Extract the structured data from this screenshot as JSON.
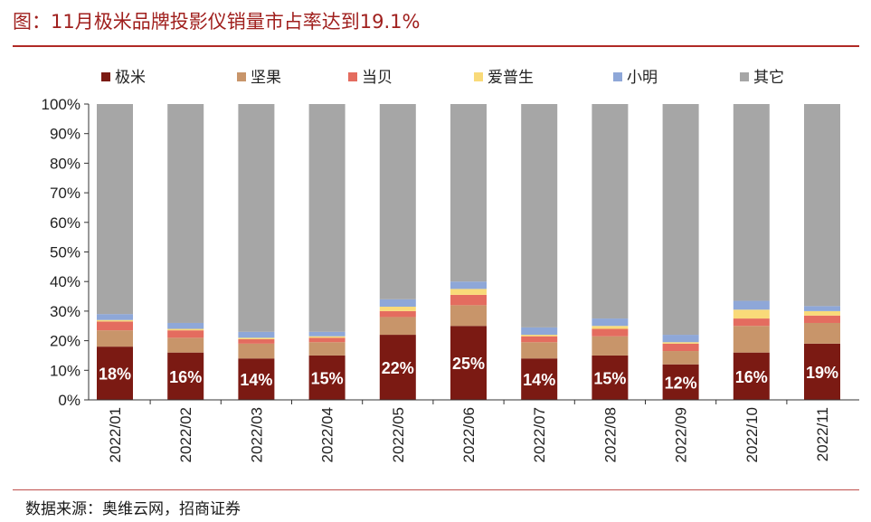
{
  "title": "图：11月极米品牌投影仪销量市占率达到19.1%",
  "source": "数据来源：奥维云网，招商证券",
  "chart_data": {
    "type": "bar",
    "stacked": true,
    "categories": [
      "2022/01",
      "2022/02",
      "2022/03",
      "2022/04",
      "2022/05",
      "2022/06",
      "2022/07",
      "2022/08",
      "2022/09",
      "2022/10",
      "2022/11"
    ],
    "y_ticks": [
      "0%",
      "10%",
      "20%",
      "30%",
      "40%",
      "50%",
      "60%",
      "70%",
      "80%",
      "90%",
      "100%"
    ],
    "ylim": [
      0,
      100
    ],
    "legend_position": "top",
    "series": [
      {
        "name": "极米",
        "color": "#7b1a13",
        "values": [
          18,
          16,
          14,
          15,
          22,
          25,
          14,
          15,
          12,
          16,
          19
        ]
      },
      {
        "name": "坚果",
        "color": "#c8956a",
        "values": [
          5.5,
          5,
          5,
          4.5,
          6,
          7,
          5.5,
          6.5,
          4.5,
          9,
          7
        ]
      },
      {
        "name": "当贝",
        "color": "#e46c5f",
        "values": [
          3,
          2.5,
          1.5,
          1.5,
          2,
          3.5,
          2,
          2.5,
          2.5,
          2.5,
          2.5
        ]
      },
      {
        "name": "爱普生",
        "color": "#f9da79",
        "values": [
          0.5,
          0.5,
          0.5,
          0.5,
          1.5,
          2,
          0.5,
          1,
          0.5,
          3,
          1.5
        ]
      },
      {
        "name": "小明",
        "color": "#8ea7d8",
        "values": [
          2,
          2,
          2,
          1.5,
          2.5,
          2.5,
          2.5,
          2.5,
          2.5,
          3,
          1.7
        ]
      },
      {
        "name": "其它",
        "color": "#a6a6a6",
        "values": [
          71,
          74,
          77,
          77,
          66,
          60,
          75.5,
          72.5,
          78,
          66.5,
          68.3
        ]
      }
    ],
    "data_labels": [
      "18%",
      "16%",
      "14%",
      "15%",
      "22%",
      "25%",
      "14%",
      "15%",
      "12%",
      "16%",
      "19%"
    ]
  }
}
